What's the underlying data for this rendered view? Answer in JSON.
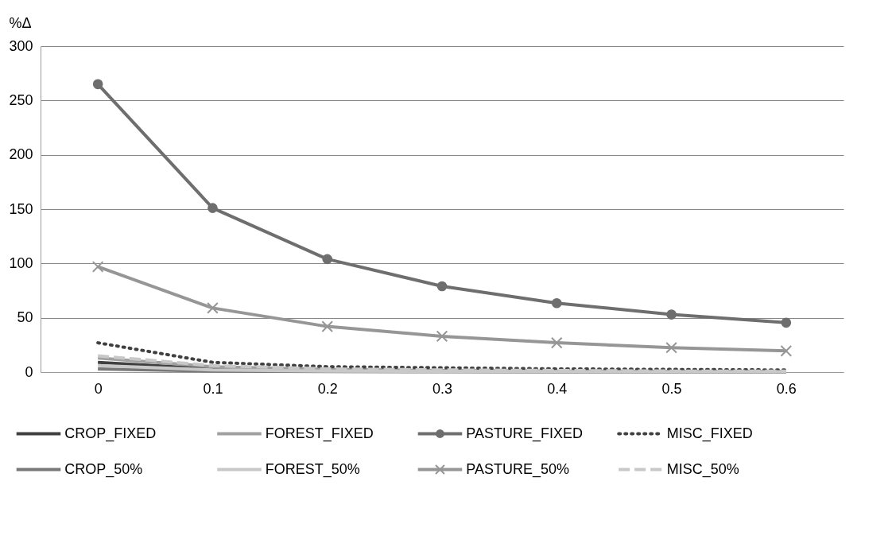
{
  "chart_data": {
    "type": "line",
    "ylabel": "%Δ",
    "categories": [
      "0",
      "0.1",
      "0.2",
      "0.3",
      "0.4",
      "0.5",
      "0.6"
    ],
    "ylim": [
      0,
      300
    ],
    "yticks": [
      0,
      50,
      100,
      150,
      200,
      250,
      300
    ],
    "grid": "y",
    "legend": "bottom",
    "series": [
      {
        "name": "CROP_FIXED",
        "color": "#404040",
        "line_style": "solid",
        "marker": "none",
        "values": [
          9,
          3,
          1.5,
          1,
          0.7,
          0.5,
          0.4
        ]
      },
      {
        "name": "FOREST_FIXED",
        "color": "#a0a0a0",
        "line_style": "solid",
        "marker": "none",
        "values": [
          13,
          5,
          2.5,
          1.5,
          1,
          0.8,
          0.6
        ]
      },
      {
        "name": "PASTURE_FIXED",
        "color": "#6e6e6e",
        "line_style": "solid",
        "marker": "circle",
        "values": [
          265,
          151,
          104,
          79,
          63.5,
          53,
          45.5
        ]
      },
      {
        "name": "MISC_FIXED",
        "color": "#404040",
        "line_style": "dotted",
        "marker": "none",
        "values": [
          27,
          9,
          5,
          4,
          3,
          2.5,
          2
        ]
      },
      {
        "name": "CROP_50%",
        "color": "#787878",
        "line_style": "solid",
        "marker": "none",
        "values": [
          3,
          1,
          0.5,
          0.3,
          0.2,
          0.2,
          0.1
        ]
      },
      {
        "name": "FOREST_50%",
        "color": "#c8c8c8",
        "line_style": "solid",
        "marker": "none",
        "values": [
          6,
          2,
          1,
          0.7,
          0.5,
          0.4,
          0.3
        ]
      },
      {
        "name": "PASTURE_50%",
        "color": "#969696",
        "line_style": "solid",
        "marker": "cross",
        "values": [
          97,
          59,
          42,
          33,
          27,
          22.5,
          19.5
        ]
      },
      {
        "name": "MISC_50%",
        "color": "#c8c8c8",
        "line_style": "dashed",
        "marker": "none",
        "values": [
          15,
          6,
          3,
          2,
          1.5,
          1,
          1
        ]
      }
    ]
  }
}
